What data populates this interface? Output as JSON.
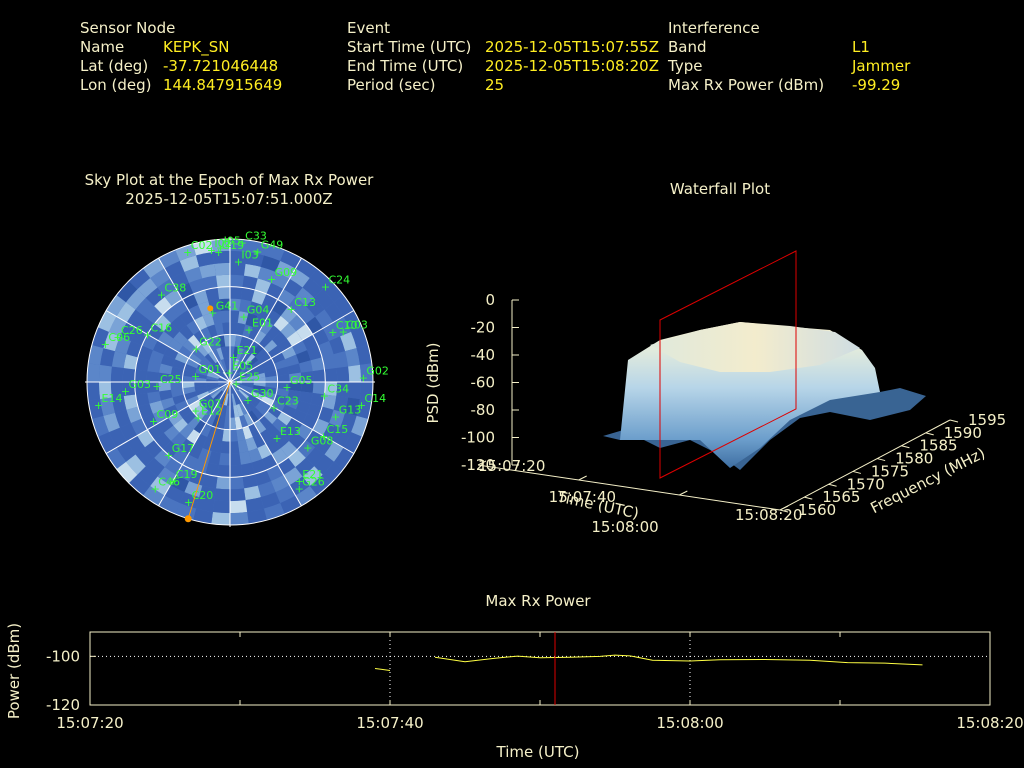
{
  "info": {
    "sensor": {
      "heading": "Sensor Node",
      "rows": [
        {
          "label": "Name",
          "value": "KEPK_SN"
        },
        {
          "label": "Lat (deg)",
          "value": "-37.721046448"
        },
        {
          "label": "Lon (deg)",
          "value": "144.847915649"
        }
      ]
    },
    "event": {
      "heading": "Event",
      "rows": [
        {
          "label": "Start Time (UTC)",
          "value": "2025-12-05T15:07:55Z"
        },
        {
          "label": "End Time (UTC)",
          "value": "2025-12-05T15:08:20Z"
        },
        {
          "label": "Period (sec)",
          "value": "25"
        }
      ]
    },
    "interference": {
      "heading": "Interference",
      "rows": [
        {
          "label": "Band",
          "value": "L1"
        },
        {
          "label": "Type",
          "value": "Jammer"
        },
        {
          "label": "Max Rx Power (dBm)",
          "value": "-99.29"
        }
      ]
    }
  },
  "skyplot": {
    "title_line1": "Sky Plot at the Epoch of Max Rx Power",
    "title_line2": "2025-12-05T15:07:51.000Z"
  },
  "waterfall": {
    "title": "Waterfall Plot"
  },
  "maxrx": {
    "title": "Max Rx Power"
  },
  "colors": {
    "text": "#f5f0c8",
    "value": "#ffee22",
    "sat": "#33ff33",
    "marker": "#ff9900",
    "line": "#ffff44",
    "cursor": "#dd0000"
  },
  "chart_data": [
    {
      "type": "scatter",
      "name": "sky-plot",
      "title": "Sky Plot at the Epoch of Max Rx Power",
      "subtitle": "2025-12-05T15:07:51.000Z",
      "projection": "polar",
      "satellites": [
        {
          "id": "C33",
          "az": 5,
          "el": 2
        },
        {
          "id": "I05",
          "az": 356,
          "el": 5
        },
        {
          "id": "G19",
          "az": 355,
          "el": 8
        },
        {
          "id": "I02",
          "az": 352,
          "el": 6
        },
        {
          "id": "C02",
          "az": 342,
          "el": 4
        },
        {
          "id": "G49",
          "az": 12,
          "el": 6
        },
        {
          "id": "G09",
          "az": 22,
          "el": 20
        },
        {
          "id": "I03",
          "az": 4,
          "el": 14
        },
        {
          "id": "C24",
          "az": 45,
          "el": 5
        },
        {
          "id": "C38",
          "az": 322,
          "el": 20
        },
        {
          "id": "G41",
          "az": 346,
          "el": 45
        },
        {
          "id": "G04",
          "az": 12,
          "el": 48
        },
        {
          "id": "E01",
          "az": 20,
          "el": 55
        },
        {
          "id": "C13",
          "az": 40,
          "el": 30
        },
        {
          "id": "C10",
          "az": 64,
          "el": 18
        },
        {
          "id": "C03",
          "az": 66,
          "el": 12
        },
        {
          "id": "C26",
          "az": 292,
          "el": 14
        },
        {
          "id": "C06",
          "az": 287,
          "el": 8
        },
        {
          "id": "C16",
          "az": 300,
          "el": 30
        },
        {
          "id": "G22",
          "az": 315,
          "el": 60
        },
        {
          "id": "E21",
          "az": 8,
          "el": 74
        },
        {
          "id": "E05",
          "az": 355,
          "el": 84
        },
        {
          "id": "G01",
          "az": 280,
          "el": 68
        },
        {
          "id": "C25",
          "az": 267,
          "el": 44
        },
        {
          "id": "G03",
          "az": 265,
          "el": 24
        },
        {
          "id": "E14",
          "az": 260,
          "el": 6
        },
        {
          "id": "G07",
          "az": 230,
          "el": 62
        },
        {
          "id": "C09",
          "az": 243,
          "el": 36
        },
        {
          "id": "E12",
          "az": 222,
          "el": 60
        },
        {
          "id": "G17",
          "az": 220,
          "el": 30
        },
        {
          "id": "C19",
          "az": 210,
          "el": 18
        },
        {
          "id": "C46",
          "az": 215,
          "el": 8
        },
        {
          "id": "C20",
          "az": 199,
          "el": 10
        },
        {
          "id": "E25",
          "az": 105,
          "el": 86
        },
        {
          "id": "G30",
          "az": 135,
          "el": 74
        },
        {
          "id": "G05",
          "az": 95,
          "el": 54
        },
        {
          "id": "C34",
          "az": 98,
          "el": 30
        },
        {
          "id": "C23",
          "az": 120,
          "el": 58
        },
        {
          "id": "G13",
          "az": 108,
          "el": 20
        },
        {
          "id": "G02",
          "az": 88,
          "el": 6
        },
        {
          "id": "C14",
          "az": 100,
          "el": 6
        },
        {
          "id": "E13",
          "az": 140,
          "el": 44
        },
        {
          "id": "G08",
          "az": 130,
          "el": 26
        },
        {
          "id": "C15",
          "az": 120,
          "el": 22
        },
        {
          "id": "E21b",
          "label": "E21",
          "az": 145,
          "el": 14
        },
        {
          "id": "G26",
          "az": 147,
          "el": 10
        }
      ],
      "jammer_direction_az_deg": 197,
      "max_power_marker": {
        "az": 345,
        "el": 42
      }
    },
    {
      "type": "surface",
      "name": "waterfall-plot",
      "title": "Waterfall Plot",
      "xlabel": "Time (UTC)",
      "ylabel": "Frequency (MHz)",
      "zlabel": "PSD (dBm)",
      "x_ticks": [
        "15:07:20",
        "15:07:40",
        "15:08:00",
        "15:08:20"
      ],
      "y_ticks": [
        1560,
        1565,
        1570,
        1575,
        1580,
        1585,
        1590,
        1595
      ],
      "z_ticks": [
        0,
        -20,
        -40,
        -60,
        -80,
        -100,
        -120
      ],
      "xlim": [
        "15:07:20",
        "15:08:20"
      ],
      "ylim": [
        1560,
        1595
      ],
      "zlim": [
        -120,
        0
      ],
      "signal_band_mhz": [
        1568,
        1590
      ],
      "signal_time": [
        "15:07:35",
        "15:08:20"
      ],
      "peak_psd_dbm": -30,
      "floor_psd_dbm": -100,
      "cursor_time": "15:07:51"
    },
    {
      "type": "line",
      "name": "max-rx-power",
      "title": "Max Rx Power",
      "xlabel": "Time (UTC)",
      "ylabel": "Power (dBm)",
      "x_ticks": [
        "15:07:20",
        "15:07:40",
        "15:08:00",
        "15:08:20"
      ],
      "y_ticks": [
        -100,
        -120
      ],
      "xlim_sec": [
        0,
        60
      ],
      "ylim": [
        -120,
        -90
      ],
      "grid": true,
      "series": [
        {
          "segments": [
            [
              [
                19.0,
                -105.0
              ],
              [
                20.0,
                -105.8
              ]
            ],
            [
              [
                23.0,
                -100.4
              ],
              [
                25.0,
                -102.2
              ],
              [
                27.0,
                -100.8
              ],
              [
                28.5,
                -99.9
              ],
              [
                30.0,
                -100.6
              ],
              [
                32.0,
                -100.4
              ],
              [
                34.0,
                -100.0
              ],
              [
                35.0,
                -99.5
              ],
              [
                36.0,
                -99.8
              ],
              [
                37.5,
                -101.6
              ],
              [
                40.0,
                -101.9
              ],
              [
                42.0,
                -101.4
              ],
              [
                45.0,
                -101.3
              ],
              [
                48.0,
                -101.6
              ],
              [
                50.5,
                -102.6
              ],
              [
                53.0,
                -102.8
              ],
              [
                55.5,
                -103.5
              ]
            ]
          ]
        }
      ],
      "cursor_sec": 31
    }
  ]
}
